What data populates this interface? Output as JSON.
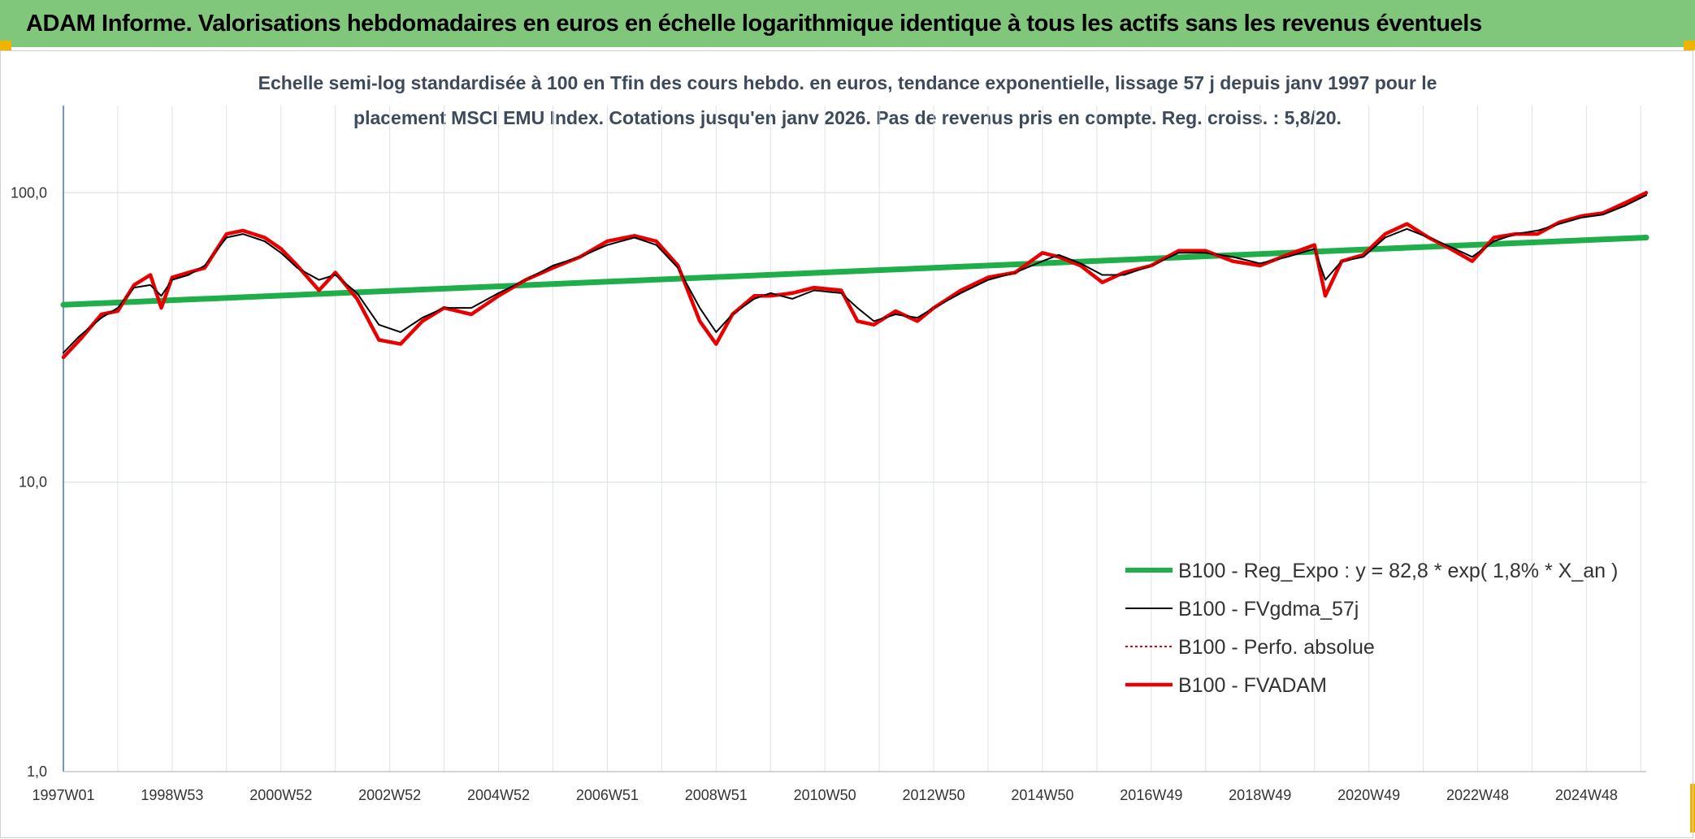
{
  "header": {
    "title": "ADAM Informe. Valorisations hebdomadaires en euros en échelle logarithmique identique à tous les actifs sans les revenus éventuels"
  },
  "colors": {
    "header_bg": "#80c77c",
    "accent_corner": "#f0b400",
    "reg_expo": "#1fae4a",
    "fvgdma": "#000000",
    "perfo": "#e00000",
    "fvadam": "#ee0000"
  },
  "chart_data": {
    "type": "line",
    "subtitle_line1": "Echelle semi-log standardisée à 100 en Tfin des cours hebdo. en euros, tendance exponentielle, lissage 57 j depuis janv 1997 pour le",
    "subtitle_line2": "placement MSCI EMU Index. Cotations jusqu'en janv 2026. Pas de revenus pris en compte. Reg. croiss. : 5,8/20.",
    "y_scale": "log",
    "ylim": [
      1,
      200
    ],
    "y_ticks": [
      {
        "value": 1,
        "label": "1,0"
      },
      {
        "value": 10,
        "label": "10,0"
      },
      {
        "value": 100,
        "label": "100,0"
      }
    ],
    "xlim": [
      1997.0,
      2026.1
    ],
    "x_ticks": [
      {
        "value": 1997.0,
        "label": "1997W01"
      },
      {
        "value": 1999.0,
        "label": "1998W53"
      },
      {
        "value": 2001.0,
        "label": "2000W52"
      },
      {
        "value": 2003.0,
        "label": "2002W52"
      },
      {
        "value": 2005.0,
        "label": "2004W52"
      },
      {
        "value": 2007.0,
        "label": "2006W51"
      },
      {
        "value": 2009.0,
        "label": "2008W51"
      },
      {
        "value": 2011.0,
        "label": "2010W50"
      },
      {
        "value": 2013.0,
        "label": "2012W50"
      },
      {
        "value": 2015.0,
        "label": "2014W50"
      },
      {
        "value": 2017.0,
        "label": "2016W49"
      },
      {
        "value": 2019.0,
        "label": "2018W49"
      },
      {
        "value": 2021.0,
        "label": "2020W49"
      },
      {
        "value": 2023.0,
        "label": "2022W48"
      },
      {
        "value": 2025.0,
        "label": "2024W48"
      }
    ],
    "grid": true,
    "legend_position": "bottom-right",
    "series": [
      {
        "name": "B100 - Reg_Expo : y = 82,8 * exp( 1,8% *  X_an )",
        "style": "thick-green",
        "x": [
          1997.0,
          2026.1
        ],
        "y": [
          41,
          70
        ]
      },
      {
        "name": "B100 - FVgdma_57j",
        "style": "thin-black",
        "x": [
          1997.0,
          1997.3,
          1997.7,
          1998.0,
          1998.3,
          1998.6,
          1998.8,
          1999.0,
          1999.3,
          1999.6,
          2000.0,
          2000.3,
          2000.7,
          2001.0,
          2001.3,
          2001.7,
          2002.0,
          2002.4,
          2002.8,
          2003.2,
          2003.6,
          2004.0,
          2004.5,
          2005.0,
          2005.5,
          2006.0,
          2006.5,
          2007.0,
          2007.5,
          2007.9,
          2008.3,
          2008.7,
          2009.0,
          2009.3,
          2009.7,
          2010.0,
          2010.4,
          2010.8,
          2011.3,
          2011.6,
          2011.9,
          2012.3,
          2012.7,
          2013.0,
          2013.5,
          2014.0,
          2014.5,
          2015.0,
          2015.3,
          2015.7,
          2016.1,
          2016.5,
          2017.0,
          2017.5,
          2018.0,
          2018.5,
          2019.0,
          2019.5,
          2020.0,
          2020.2,
          2020.5,
          2020.9,
          2021.3,
          2021.7,
          2022.1,
          2022.5,
          2022.9,
          2023.3,
          2023.7,
          2024.1,
          2024.5,
          2024.9,
          2025.3,
          2025.7,
          2026.1
        ],
        "y": [
          28,
          32,
          37,
          40,
          47,
          48,
          44,
          50,
          52,
          56,
          70,
          72,
          68,
          62,
          55,
          50,
          52,
          45,
          35,
          33,
          37,
          40,
          40,
          45,
          50,
          56,
          60,
          66,
          70,
          66,
          55,
          40,
          33,
          38,
          43,
          45,
          43,
          46,
          45,
          40,
          36,
          38,
          37,
          40,
          45,
          50,
          53,
          58,
          61,
          57,
          52,
          52,
          56,
          62,
          62,
          60,
          57,
          60,
          64,
          50,
          58,
          60,
          70,
          75,
          70,
          65,
          60,
          68,
          72,
          74,
          78,
          82,
          84,
          90,
          98
        ]
      },
      {
        "name": "B100 - Perfo. absolue",
        "style": "dotted-red",
        "x": [
          1997.0,
          1997.3,
          1997.7,
          1998.0,
          1998.3,
          1998.6,
          1998.8,
          1999.0,
          1999.3,
          1999.6,
          2000.0,
          2000.3,
          2000.7,
          2001.0,
          2001.3,
          2001.7,
          2002.0,
          2002.4,
          2002.8,
          2003.2,
          2003.6,
          2004.0,
          2004.5,
          2005.0,
          2005.5,
          2006.0,
          2006.5,
          2007.0,
          2007.5,
          2007.9,
          2008.3,
          2008.7,
          2009.0,
          2009.3,
          2009.7,
          2010.0,
          2010.4,
          2010.8,
          2011.3,
          2011.6,
          2011.9,
          2012.3,
          2012.7,
          2013.0,
          2013.5,
          2014.0,
          2014.5,
          2015.0,
          2015.3,
          2015.7,
          2016.1,
          2016.5,
          2017.0,
          2017.5,
          2018.0,
          2018.5,
          2019.0,
          2019.5,
          2020.0,
          2020.2,
          2020.5,
          2020.9,
          2021.3,
          2021.7,
          2022.1,
          2022.5,
          2022.9,
          2023.3,
          2023.7,
          2024.1,
          2024.5,
          2024.9,
          2025.3,
          2025.7,
          2026.1
        ],
        "y": [
          27,
          31,
          38,
          39,
          48,
          52,
          40,
          51,
          53,
          55,
          72,
          74,
          70,
          64,
          56,
          46,
          53,
          43,
          31,
          30,
          36,
          40,
          38,
          44,
          50,
          55,
          60,
          68,
          71,
          68,
          56,
          36,
          30,
          38,
          44,
          44,
          45,
          47,
          46,
          36,
          35,
          39,
          36,
          40,
          46,
          51,
          53,
          62,
          60,
          56,
          49,
          53,
          56,
          63,
          63,
          58,
          56,
          61,
          66,
          44,
          58,
          61,
          72,
          78,
          70,
          64,
          58,
          70,
          72,
          72,
          79,
          83,
          85,
          92,
          100
        ]
      },
      {
        "name": "B100 - FVADAM",
        "style": "thick-red",
        "x": [
          1997.0,
          1997.3,
          1997.7,
          1998.0,
          1998.3,
          1998.6,
          1998.8,
          1999.0,
          1999.3,
          1999.6,
          2000.0,
          2000.3,
          2000.7,
          2001.0,
          2001.3,
          2001.7,
          2002.0,
          2002.4,
          2002.8,
          2003.2,
          2003.6,
          2004.0,
          2004.5,
          2005.0,
          2005.5,
          2006.0,
          2006.5,
          2007.0,
          2007.5,
          2007.9,
          2008.3,
          2008.7,
          2009.0,
          2009.3,
          2009.7,
          2010.0,
          2010.4,
          2010.8,
          2011.3,
          2011.6,
          2011.9,
          2012.3,
          2012.7,
          2013.0,
          2013.5,
          2014.0,
          2014.5,
          2015.0,
          2015.3,
          2015.7,
          2016.1,
          2016.5,
          2017.0,
          2017.5,
          2018.0,
          2018.5,
          2019.0,
          2019.5,
          2020.0,
          2020.2,
          2020.5,
          2020.9,
          2021.3,
          2021.7,
          2022.1,
          2022.5,
          2022.9,
          2023.3,
          2023.7,
          2024.1,
          2024.5,
          2024.9,
          2025.3,
          2025.7,
          2026.1
        ],
        "y": [
          27,
          31,
          38,
          39,
          48,
          52,
          40,
          51,
          53,
          55,
          72,
          74,
          70,
          64,
          56,
          46,
          53,
          43,
          31,
          30,
          36,
          40,
          38,
          44,
          50,
          55,
          60,
          68,
          71,
          68,
          56,
          36,
          30,
          38,
          44,
          44,
          45,
          47,
          46,
          36,
          35,
          39,
          36,
          40,
          46,
          51,
          53,
          62,
          60,
          56,
          49,
          53,
          56,
          63,
          63,
          58,
          56,
          61,
          66,
          44,
          58,
          61,
          72,
          78,
          70,
          64,
          58,
          70,
          72,
          72,
          79,
          83,
          85,
          92,
          100
        ]
      }
    ]
  }
}
